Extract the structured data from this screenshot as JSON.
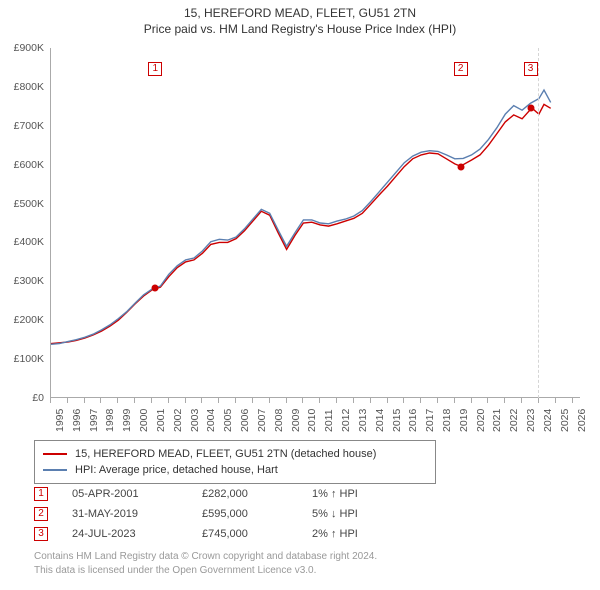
{
  "title": {
    "line1": "15, HEREFORD MEAD, FLEET, GU51 2TN",
    "line2": "Price paid vs. HM Land Registry's House Price Index (HPI)"
  },
  "chart": {
    "type": "line",
    "plot_background": "#ffffff",
    "axis_color": "#aaaaaa",
    "grid_color": "#d5d5d5",
    "x_range": [
      1995,
      2026.5
    ],
    "y_range": [
      0,
      900000
    ],
    "y_ticks": [
      0,
      100000,
      200000,
      300000,
      400000,
      500000,
      600000,
      700000,
      800000,
      900000
    ],
    "y_tick_labels": [
      "£0",
      "£100K",
      "£200K",
      "£300K",
      "£400K",
      "£500K",
      "£600K",
      "£700K",
      "£800K",
      "£900K"
    ],
    "x_ticks": [
      1995,
      1996,
      1997,
      1998,
      1999,
      2000,
      2001,
      2002,
      2003,
      2004,
      2005,
      2006,
      2007,
      2008,
      2009,
      2010,
      2011,
      2012,
      2013,
      2014,
      2015,
      2016,
      2017,
      2018,
      2019,
      2020,
      2021,
      2022,
      2023,
      2024,
      2025,
      2026
    ],
    "label_fontsize": 10.5,
    "label_color": "#555555",
    "grid_year": 2024,
    "series": [
      {
        "id": "price_paid",
        "label": "15, HEREFORD MEAD, FLEET, GU51 2TN (detached house)",
        "color": "#cc0000",
        "line_width": 1.4,
        "points": [
          [
            1995.0,
            140000
          ],
          [
            1995.5,
            142000
          ],
          [
            1996.0,
            144000
          ],
          [
            1996.5,
            148000
          ],
          [
            1997.0,
            154000
          ],
          [
            1997.5,
            162000
          ],
          [
            1998.0,
            172000
          ],
          [
            1998.5,
            185000
          ],
          [
            1999.0,
            200000
          ],
          [
            1999.5,
            220000
          ],
          [
            2000.0,
            242000
          ],
          [
            2000.5,
            262000
          ],
          [
            2001.0,
            278000
          ],
          [
            2001.3,
            282000
          ],
          [
            2001.5,
            285000
          ],
          [
            2002.0,
            312000
          ],
          [
            2002.5,
            335000
          ],
          [
            2003.0,
            350000
          ],
          [
            2003.5,
            355000
          ],
          [
            2004.0,
            372000
          ],
          [
            2004.5,
            395000
          ],
          [
            2005.0,
            400000
          ],
          [
            2005.5,
            400000
          ],
          [
            2006.0,
            410000
          ],
          [
            2006.5,
            430000
          ],
          [
            2007.0,
            455000
          ],
          [
            2007.5,
            480000
          ],
          [
            2008.0,
            470000
          ],
          [
            2008.5,
            425000
          ],
          [
            2009.0,
            382000
          ],
          [
            2009.5,
            418000
          ],
          [
            2010.0,
            450000
          ],
          [
            2010.5,
            452000
          ],
          [
            2011.0,
            445000
          ],
          [
            2011.5,
            442000
          ],
          [
            2012.0,
            448000
          ],
          [
            2012.5,
            455000
          ],
          [
            2013.0,
            462000
          ],
          [
            2013.5,
            475000
          ],
          [
            2014.0,
            498000
          ],
          [
            2014.5,
            522000
          ],
          [
            2015.0,
            545000
          ],
          [
            2015.5,
            570000
          ],
          [
            2016.0,
            595000
          ],
          [
            2016.5,
            615000
          ],
          [
            2017.0,
            625000
          ],
          [
            2017.5,
            630000
          ],
          [
            2018.0,
            628000
          ],
          [
            2018.5,
            615000
          ],
          [
            2019.0,
            602000
          ],
          [
            2019.4,
            595000
          ],
          [
            2019.5,
            600000
          ],
          [
            2020.0,
            612000
          ],
          [
            2020.5,
            625000
          ],
          [
            2021.0,
            650000
          ],
          [
            2021.5,
            680000
          ],
          [
            2022.0,
            710000
          ],
          [
            2022.5,
            728000
          ],
          [
            2023.0,
            718000
          ],
          [
            2023.5,
            742000
          ],
          [
            2023.6,
            745000
          ],
          [
            2024.0,
            730000
          ],
          [
            2024.3,
            755000
          ],
          [
            2024.7,
            745000
          ]
        ]
      },
      {
        "id": "hpi",
        "label": "HPI: Average price, detached house, Hart",
        "color": "#5b7fb0",
        "line_width": 1.4,
        "points": [
          [
            1995.0,
            138000
          ],
          [
            1995.5,
            140000
          ],
          [
            1996.0,
            145000
          ],
          [
            1996.5,
            150000
          ],
          [
            1997.0,
            156000
          ],
          [
            1997.5,
            164000
          ],
          [
            1998.0,
            175000
          ],
          [
            1998.5,
            188000
          ],
          [
            1999.0,
            204000
          ],
          [
            1999.5,
            222000
          ],
          [
            2000.0,
            244000
          ],
          [
            2000.5,
            265000
          ],
          [
            2001.0,
            280000
          ],
          [
            2001.5,
            288000
          ],
          [
            2002.0,
            318000
          ],
          [
            2002.5,
            340000
          ],
          [
            2003.0,
            355000
          ],
          [
            2003.5,
            360000
          ],
          [
            2004.0,
            378000
          ],
          [
            2004.5,
            402000
          ],
          [
            2005.0,
            408000
          ],
          [
            2005.5,
            406000
          ],
          [
            2006.0,
            414000
          ],
          [
            2006.5,
            435000
          ],
          [
            2007.0,
            460000
          ],
          [
            2007.5,
            485000
          ],
          [
            2008.0,
            475000
          ],
          [
            2008.5,
            432000
          ],
          [
            2009.0,
            390000
          ],
          [
            2009.5,
            425000
          ],
          [
            2010.0,
            458000
          ],
          [
            2010.5,
            458000
          ],
          [
            2011.0,
            450000
          ],
          [
            2011.5,
            448000
          ],
          [
            2012.0,
            455000
          ],
          [
            2012.5,
            460000
          ],
          [
            2013.0,
            468000
          ],
          [
            2013.5,
            482000
          ],
          [
            2014.0,
            505000
          ],
          [
            2014.5,
            530000
          ],
          [
            2015.0,
            555000
          ],
          [
            2015.5,
            580000
          ],
          [
            2016.0,
            605000
          ],
          [
            2016.5,
            622000
          ],
          [
            2017.0,
            632000
          ],
          [
            2017.5,
            636000
          ],
          [
            2018.0,
            634000
          ],
          [
            2018.5,
            625000
          ],
          [
            2019.0,
            615000
          ],
          [
            2019.5,
            616000
          ],
          [
            2020.0,
            625000
          ],
          [
            2020.5,
            640000
          ],
          [
            2021.0,
            665000
          ],
          [
            2021.5,
            695000
          ],
          [
            2022.0,
            730000
          ],
          [
            2022.5,
            752000
          ],
          [
            2023.0,
            740000
          ],
          [
            2023.5,
            758000
          ],
          [
            2024.0,
            770000
          ],
          [
            2024.3,
            792000
          ],
          [
            2024.7,
            760000
          ]
        ]
      }
    ],
    "sale_markers": [
      {
        "n": "1",
        "year": 2001.26,
        "price": 282000,
        "color": "#cc0000"
      },
      {
        "n": "2",
        "year": 2019.41,
        "price": 595000,
        "color": "#cc0000"
      },
      {
        "n": "3",
        "year": 2023.56,
        "price": 745000,
        "color": "#cc0000"
      }
    ]
  },
  "legend": {
    "items": [
      {
        "color": "#cc0000",
        "label": "15, HEREFORD MEAD, FLEET, GU51 2TN (detached house)"
      },
      {
        "color": "#5b7fb0",
        "label": "HPI: Average price, detached house, Hart"
      }
    ]
  },
  "sales": [
    {
      "n": "1",
      "date": "05-APR-2001",
      "price": "£282,000",
      "delta": "1% ↑ HPI"
    },
    {
      "n": "2",
      "date": "31-MAY-2019",
      "price": "£595,000",
      "delta": "5% ↓ HPI"
    },
    {
      "n": "3",
      "date": "24-JUL-2023",
      "price": "£745,000",
      "delta": "2% ↑ HPI"
    }
  ],
  "attribution": {
    "line1": "Contains HM Land Registry data © Crown copyright and database right 2024.",
    "line2": "This data is licensed under the Open Government Licence v3.0."
  },
  "marker_border_color": "#cc0000",
  "marker_text_color": "#cc0000"
}
